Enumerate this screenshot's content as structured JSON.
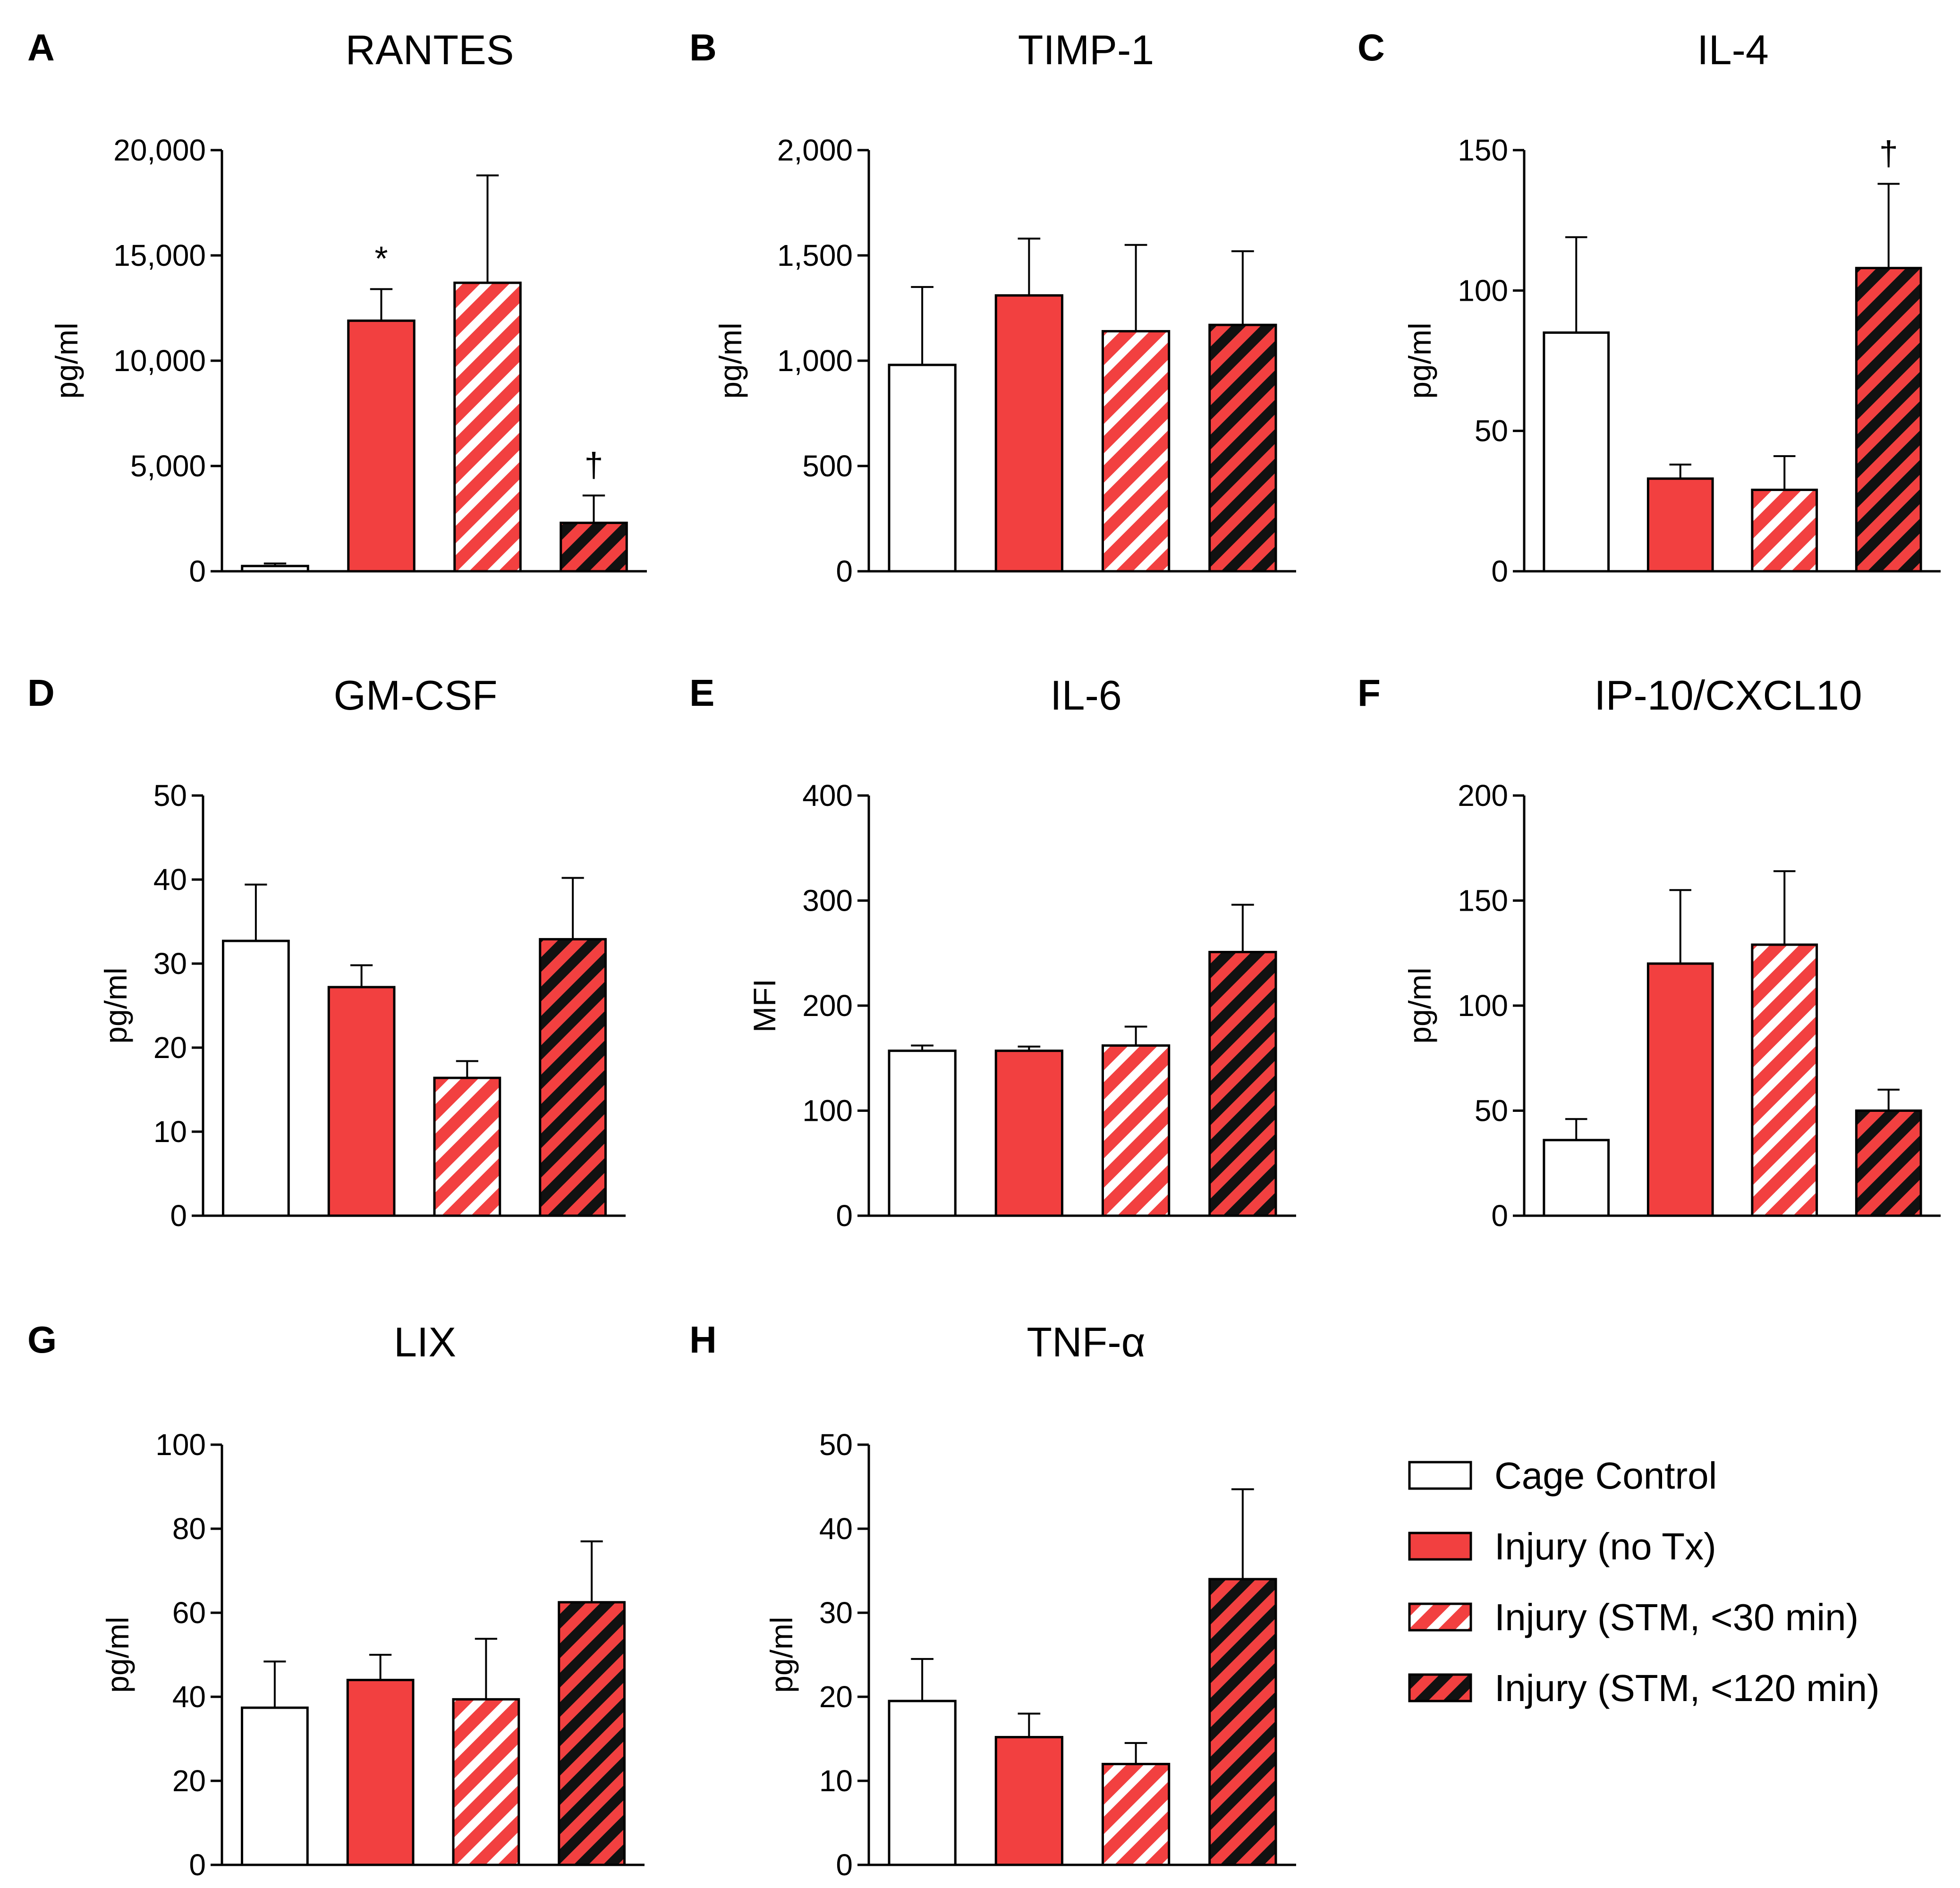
{
  "colors": {
    "control": "#ffffff",
    "injury": "#f24040",
    "stripe_light": "#ffffff",
    "stripe_dark": "#111111",
    "axis": "#000000"
  },
  "legend": [
    {
      "label": "Cage Control",
      "style": "control"
    },
    {
      "label": "Injury (no Tx)",
      "style": "injury"
    },
    {
      "label": "Injury (STM, <30 min)",
      "style": "stm30"
    },
    {
      "label": "Injury (STM, <120 min)",
      "style": "stm120"
    }
  ],
  "chart_data": [
    {
      "letter": "A",
      "type": "bar",
      "title": "RANTES",
      "ylabel": "pg/ml",
      "categories": [
        "Cage Control",
        "Injury (no Tx)",
        "Injury (STM, <30 min)",
        "Injury (STM, <120 min)"
      ],
      "ylim": [
        0,
        20000
      ],
      "ticks": [
        0,
        5000,
        10000,
        15000,
        20000
      ],
      "tick_labels": [
        "0",
        "5,000",
        "10,000",
        "15,000",
        "20,000"
      ],
      "values": [
        250,
        11900,
        13700,
        2300
      ],
      "errors": [
        120,
        1500,
        5100,
        1300
      ],
      "annotations": [
        "",
        "*",
        "",
        "†"
      ]
    },
    {
      "letter": "B",
      "type": "bar",
      "title": "TIMP-1",
      "ylabel": "pg/ml",
      "categories": [
        "Cage Control",
        "Injury (no Tx)",
        "Injury (STM, <30 min)",
        "Injury (STM, <120 min)"
      ],
      "ylim": [
        0,
        2000
      ],
      "ticks": [
        0,
        500,
        1000,
        1500,
        2000
      ],
      "tick_labels": [
        "0",
        "500",
        "1,000",
        "1,500",
        "2,000"
      ],
      "values": [
        980,
        1310,
        1140,
        1170
      ],
      "errors": [
        370,
        270,
        410,
        350
      ],
      "annotations": [
        "",
        "",
        "",
        ""
      ]
    },
    {
      "letter": "C",
      "type": "bar",
      "title": "IL-4",
      "ylabel": "pg/ml",
      "categories": [
        "Cage Control",
        "Injury (no Tx)",
        "Injury (STM, <30 min)",
        "Injury (STM, <120 min)"
      ],
      "ylim": [
        0,
        150
      ],
      "ticks": [
        0,
        50,
        100,
        150
      ],
      "tick_labels": [
        "0",
        "50",
        "100",
        "150"
      ],
      "values": [
        85,
        33,
        29,
        108
      ],
      "errors": [
        34,
        5,
        12,
        30
      ],
      "annotations": [
        "",
        "",
        "",
        "†"
      ]
    },
    {
      "letter": "D",
      "type": "bar",
      "title": "GM-CSF",
      "ylabel": "pg/ml",
      "categories": [
        "Cage Control",
        "Injury (no Tx)",
        "Injury (STM, <30 min)",
        "Injury (STM, <120 min)"
      ],
      "ylim": [
        0,
        50
      ],
      "ticks": [
        0,
        10,
        20,
        30,
        40,
        50
      ],
      "tick_labels": [
        "0",
        "10",
        "20",
        "30",
        "40",
        "50"
      ],
      "values": [
        32.7,
        27.2,
        16.4,
        32.9
      ],
      "errors": [
        6.7,
        2.6,
        2.0,
        7.3
      ],
      "annotations": [
        "",
        "",
        "",
        ""
      ]
    },
    {
      "letter": "E",
      "type": "bar",
      "title": "IL-6",
      "ylabel": "MFI",
      "categories": [
        "Cage Control",
        "Injury (no Tx)",
        "Injury (STM, <30 min)",
        "Injury (STM, <120 min)"
      ],
      "ylim": [
        0,
        400
      ],
      "ticks": [
        0,
        100,
        200,
        300,
        400
      ],
      "tick_labels": [
        "0",
        "100",
        "200",
        "300",
        "400"
      ],
      "values": [
        157,
        157,
        162,
        251
      ],
      "errors": [
        5,
        4,
        18,
        45
      ],
      "annotations": [
        "",
        "",
        "",
        ""
      ]
    },
    {
      "letter": "F",
      "type": "bar",
      "title": "IP-10/CXCL10",
      "ylabel": "pg/ml",
      "categories": [
        "Cage Control",
        "Injury (no Tx)",
        "Injury (STM, <30 min)",
        "Injury (STM, <120 min)"
      ],
      "ylim": [
        0,
        200
      ],
      "ticks": [
        0,
        50,
        100,
        150,
        200
      ],
      "tick_labels": [
        "0",
        "50",
        "100",
        "150",
        "200"
      ],
      "values": [
        36,
        120,
        129,
        50
      ],
      "errors": [
        10,
        35,
        35,
        10
      ],
      "annotations": [
        "",
        "",
        "",
        ""
      ]
    },
    {
      "letter": "G",
      "type": "bar",
      "title": "LIX",
      "ylabel": "pg/ml",
      "categories": [
        "Cage Control",
        "Injury (no Tx)",
        "Injury (STM, <30 min)",
        "Injury (STM, <120 min)"
      ],
      "ylim": [
        0,
        100
      ],
      "ticks": [
        0,
        20,
        40,
        60,
        80,
        100
      ],
      "tick_labels": [
        "0",
        "20",
        "40",
        "60",
        "80",
        "100"
      ],
      "values": [
        37.4,
        44,
        39.4,
        62.5
      ],
      "errors": [
        11,
        6,
        14.4,
        14.5
      ],
      "annotations": [
        "",
        "",
        "",
        ""
      ]
    },
    {
      "letter": "H",
      "type": "bar",
      "title": "TNF-α",
      "ylabel": "pg/ml",
      "categories": [
        "Cage Control",
        "Injury (no Tx)",
        "Injury (STM, <30 min)",
        "Injury (STM, <120 min)"
      ],
      "ylim": [
        0,
        50
      ],
      "ticks": [
        0,
        10,
        20,
        30,
        40,
        50
      ],
      "tick_labels": [
        "0",
        "10",
        "20",
        "30",
        "40",
        "50"
      ],
      "values": [
        19.5,
        15.2,
        12.0,
        34.0
      ],
      "errors": [
        5.0,
        2.8,
        2.5,
        10.7
      ],
      "annotations": [
        "",
        "",
        "",
        ""
      ]
    }
  ]
}
